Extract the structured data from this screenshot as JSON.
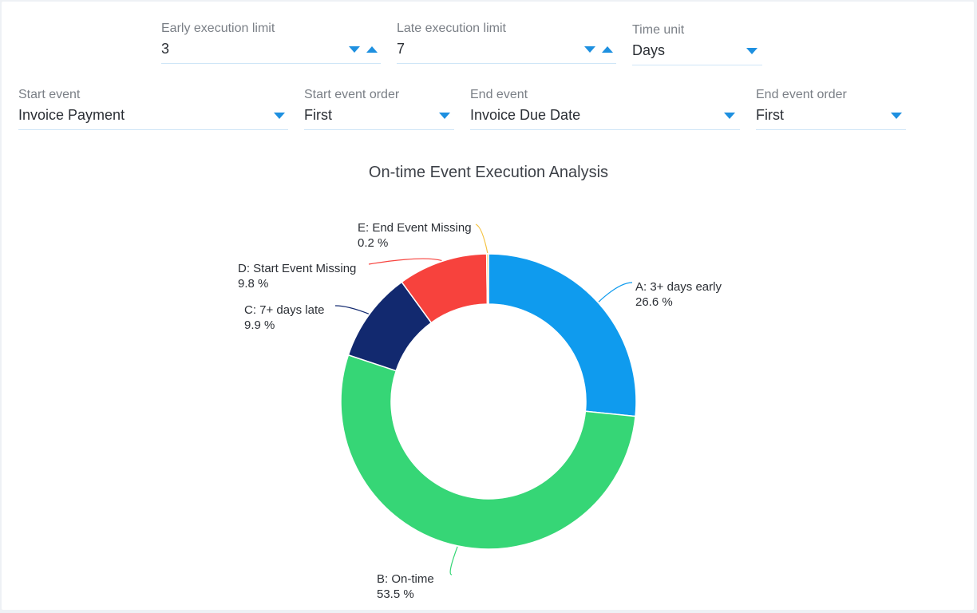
{
  "filters": {
    "early_limit": {
      "label": "Early execution limit",
      "value": "3"
    },
    "late_limit": {
      "label": "Late execution limit",
      "value": "7"
    },
    "time_unit": {
      "label": "Time unit",
      "value": "Days"
    },
    "start_event": {
      "label": "Start event",
      "value": "Invoice Payment"
    },
    "start_event_order": {
      "label": "Start event order",
      "value": "First"
    },
    "end_event": {
      "label": "End event",
      "value": "Invoice Due Date"
    },
    "end_event_order": {
      "label": "End event order",
      "value": "First"
    }
  },
  "chart_data": {
    "type": "pie",
    "title": "On-time Event Execution Analysis",
    "donut": true,
    "slices": [
      {
        "label": "A: 3+ days early",
        "value": 26.6,
        "display": "26.6 %",
        "color": "#0f9bee"
      },
      {
        "label": "B: On-time",
        "value": 53.5,
        "display": "53.5 %",
        "color": "#36d676"
      },
      {
        "label": "C: 7+ days late",
        "value": 9.9,
        "display": "9.9 %",
        "color": "#12296f"
      },
      {
        "label": "D: Start Event Missing",
        "value": 9.8,
        "display": "9.8 %",
        "color": "#f7423d"
      },
      {
        "label": "E: End Event Missing",
        "value": 0.2,
        "display": "0.2 %",
        "color": "#f5c342"
      }
    ]
  }
}
